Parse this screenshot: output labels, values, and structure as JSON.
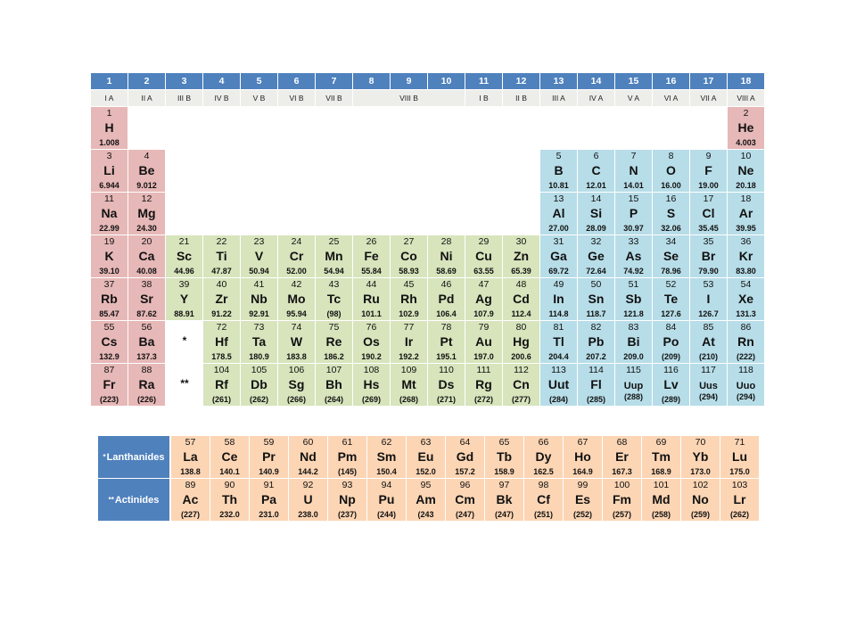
{
  "colors": {
    "header_blue": "#4f81bd",
    "subheader_gray": "#ededea",
    "s_block": "#e6b8b7",
    "d_block": "#d7e4bc",
    "p_block": "#b7dde8",
    "f_block": "#fcd5b4"
  },
  "groups": [
    "1",
    "2",
    "3",
    "4",
    "5",
    "6",
    "7",
    "8",
    "9",
    "10",
    "11",
    "12",
    "13",
    "14",
    "15",
    "16",
    "17",
    "18"
  ],
  "subgroups": [
    {
      "label": "I A",
      "span": 1
    },
    {
      "label": "II A",
      "span": 1
    },
    {
      "label": "III B",
      "span": 1
    },
    {
      "label": "IV B",
      "span": 1
    },
    {
      "label": "V B",
      "span": 1
    },
    {
      "label": "VI B",
      "span": 1
    },
    {
      "label": "VII B",
      "span": 1
    },
    {
      "label": "VIII B",
      "span": 3
    },
    {
      "label": "I B",
      "span": 1
    },
    {
      "label": "II B",
      "span": 1
    },
    {
      "label": "III A",
      "span": 1
    },
    {
      "label": "IV A",
      "span": 1
    },
    {
      "label": "V A",
      "span": 1
    },
    {
      "label": "VI A",
      "span": 1
    },
    {
      "label": "VII A",
      "span": 1
    },
    {
      "label": "VIII A",
      "span": 1
    }
  ],
  "elements": [
    {
      "n": "1",
      "s": "H",
      "m": "1.008",
      "col": 1,
      "row": 1,
      "block": "s"
    },
    {
      "n": "2",
      "s": "He",
      "m": "4.003",
      "col": 18,
      "row": 1,
      "block": "s"
    },
    {
      "n": "3",
      "s": "Li",
      "m": "6.944",
      "col": 1,
      "row": 2,
      "block": "s"
    },
    {
      "n": "4",
      "s": "Be",
      "m": "9.012",
      "col": 2,
      "row": 2,
      "block": "s"
    },
    {
      "n": "5",
      "s": "B",
      "m": "10.81",
      "col": 13,
      "row": 2,
      "block": "p"
    },
    {
      "n": "6",
      "s": "C",
      "m": "12.01",
      "col": 14,
      "row": 2,
      "block": "p"
    },
    {
      "n": "7",
      "s": "N",
      "m": "14.01",
      "col": 15,
      "row": 2,
      "block": "p"
    },
    {
      "n": "8",
      "s": "O",
      "m": "16.00",
      "col": 16,
      "row": 2,
      "block": "p"
    },
    {
      "n": "9",
      "s": "F",
      "m": "19.00",
      "col": 17,
      "row": 2,
      "block": "p"
    },
    {
      "n": "10",
      "s": "Ne",
      "m": "20.18",
      "col": 18,
      "row": 2,
      "block": "p"
    },
    {
      "n": "11",
      "s": "Na",
      "m": "22.99",
      "col": 1,
      "row": 3,
      "block": "s"
    },
    {
      "n": "12",
      "s": "Mg",
      "m": "24.30",
      "col": 2,
      "row": 3,
      "block": "s"
    },
    {
      "n": "13",
      "s": "Al",
      "m": "27.00",
      "col": 13,
      "row": 3,
      "block": "p"
    },
    {
      "n": "14",
      "s": "Si",
      "m": "28.09",
      "col": 14,
      "row": 3,
      "block": "p"
    },
    {
      "n": "15",
      "s": "P",
      "m": "30.97",
      "col": 15,
      "row": 3,
      "block": "p"
    },
    {
      "n": "16",
      "s": "S",
      "m": "32.06",
      "col": 16,
      "row": 3,
      "block": "p"
    },
    {
      "n": "17",
      "s": "Cl",
      "m": "35.45",
      "col": 17,
      "row": 3,
      "block": "p"
    },
    {
      "n": "18",
      "s": "Ar",
      "m": "39.95",
      "col": 18,
      "row": 3,
      "block": "p"
    },
    {
      "n": "19",
      "s": "K",
      "m": "39.10",
      "col": 1,
      "row": 4,
      "block": "s"
    },
    {
      "n": "20",
      "s": "Ca",
      "m": "40.08",
      "col": 2,
      "row": 4,
      "block": "s"
    },
    {
      "n": "21",
      "s": "Sc",
      "m": "44.96",
      "col": 3,
      "row": 4,
      "block": "d"
    },
    {
      "n": "22",
      "s": "Ti",
      "m": "47.87",
      "col": 4,
      "row": 4,
      "block": "d"
    },
    {
      "n": "23",
      "s": "V",
      "m": "50.94",
      "col": 5,
      "row": 4,
      "block": "d"
    },
    {
      "n": "24",
      "s": "Cr",
      "m": "52.00",
      "col": 6,
      "row": 4,
      "block": "d"
    },
    {
      "n": "25",
      "s": "Mn",
      "m": "54.94",
      "col": 7,
      "row": 4,
      "block": "d"
    },
    {
      "n": "26",
      "s": "Fe",
      "m": "55.84",
      "col": 8,
      "row": 4,
      "block": "d"
    },
    {
      "n": "27",
      "s": "Co",
      "m": "58.93",
      "col": 9,
      "row": 4,
      "block": "d"
    },
    {
      "n": "28",
      "s": "Ni",
      "m": "58.69",
      "col": 10,
      "row": 4,
      "block": "d"
    },
    {
      "n": "29",
      "s": "Cu",
      "m": "63.55",
      "col": 11,
      "row": 4,
      "block": "d"
    },
    {
      "n": "30",
      "s": "Zn",
      "m": "65.39",
      "col": 12,
      "row": 4,
      "block": "d"
    },
    {
      "n": "31",
      "s": "Ga",
      "m": "69.72",
      "col": 13,
      "row": 4,
      "block": "p"
    },
    {
      "n": "32",
      "s": "Ge",
      "m": "72.64",
      "col": 14,
      "row": 4,
      "block": "p"
    },
    {
      "n": "33",
      "s": "As",
      "m": "74.92",
      "col": 15,
      "row": 4,
      "block": "p"
    },
    {
      "n": "34",
      "s": "Se",
      "m": "78.96",
      "col": 16,
      "row": 4,
      "block": "p"
    },
    {
      "n": "35",
      "s": "Br",
      "m": "79.90",
      "col": 17,
      "row": 4,
      "block": "p"
    },
    {
      "n": "36",
      "s": "Kr",
      "m": "83.80",
      "col": 18,
      "row": 4,
      "block": "p"
    },
    {
      "n": "37",
      "s": "Rb",
      "m": "85.47",
      "col": 1,
      "row": 5,
      "block": "s"
    },
    {
      "n": "38",
      "s": "Sr",
      "m": "87.62",
      "col": 2,
      "row": 5,
      "block": "s"
    },
    {
      "n": "39",
      "s": "Y",
      "m": "88.91",
      "col": 3,
      "row": 5,
      "block": "d"
    },
    {
      "n": "40",
      "s": "Zr",
      "m": "91.22",
      "col": 4,
      "row": 5,
      "block": "d"
    },
    {
      "n": "41",
      "s": "Nb",
      "m": "92.91",
      "col": 5,
      "row": 5,
      "block": "d"
    },
    {
      "n": "42",
      "s": "Mo",
      "m": "95.94",
      "col": 6,
      "row": 5,
      "block": "d"
    },
    {
      "n": "43",
      "s": "Tc",
      "m": "(98)",
      "col": 7,
      "row": 5,
      "block": "d"
    },
    {
      "n": "44",
      "s": "Ru",
      "m": "101.1",
      "col": 8,
      "row": 5,
      "block": "d"
    },
    {
      "n": "45",
      "s": "Rh",
      "m": "102.9",
      "col": 9,
      "row": 5,
      "block": "d"
    },
    {
      "n": "46",
      "s": "Pd",
      "m": "106.4",
      "col": 10,
      "row": 5,
      "block": "d"
    },
    {
      "n": "47",
      "s": "Ag",
      "m": "107.9",
      "col": 11,
      "row": 5,
      "block": "d"
    },
    {
      "n": "48",
      "s": "Cd",
      "m": "112.4",
      "col": 12,
      "row": 5,
      "block": "d"
    },
    {
      "n": "49",
      "s": "In",
      "m": "114.8",
      "col": 13,
      "row": 5,
      "block": "p"
    },
    {
      "n": "50",
      "s": "Sn",
      "m": "118.7",
      "col": 14,
      "row": 5,
      "block": "p"
    },
    {
      "n": "51",
      "s": "Sb",
      "m": "121.8",
      "col": 15,
      "row": 5,
      "block": "p"
    },
    {
      "n": "52",
      "s": "Te",
      "m": "127.6",
      "col": 16,
      "row": 5,
      "block": "p"
    },
    {
      "n": "53",
      "s": "I",
      "m": "126.7",
      "col": 17,
      "row": 5,
      "block": "p"
    },
    {
      "n": "54",
      "s": "Xe",
      "m": "131.3",
      "col": 18,
      "row": 5,
      "block": "p"
    },
    {
      "n": "55",
      "s": "Cs",
      "m": "132.9",
      "col": 1,
      "row": 6,
      "block": "s"
    },
    {
      "n": "56",
      "s": "Ba",
      "m": "137.3",
      "col": 2,
      "row": 6,
      "block": "s"
    },
    {
      "n": "72",
      "s": "Hf",
      "m": "178.5",
      "col": 4,
      "row": 6,
      "block": "d"
    },
    {
      "n": "73",
      "s": "Ta",
      "m": "180.9",
      "col": 5,
      "row": 6,
      "block": "d"
    },
    {
      "n": "74",
      "s": "W",
      "m": "183.8",
      "col": 6,
      "row": 6,
      "block": "d"
    },
    {
      "n": "75",
      "s": "Re",
      "m": "186.2",
      "col": 7,
      "row": 6,
      "block": "d"
    },
    {
      "n": "76",
      "s": "Os",
      "m": "190.2",
      "col": 8,
      "row": 6,
      "block": "d"
    },
    {
      "n": "77",
      "s": "Ir",
      "m": "192.2",
      "col": 9,
      "row": 6,
      "block": "d"
    },
    {
      "n": "78",
      "s": "Pt",
      "m": "195.1",
      "col": 10,
      "row": 6,
      "block": "d"
    },
    {
      "n": "79",
      "s": "Au",
      "m": "197.0",
      "col": 11,
      "row": 6,
      "block": "d"
    },
    {
      "n": "80",
      "s": "Hg",
      "m": "200.6",
      "col": 12,
      "row": 6,
      "block": "d"
    },
    {
      "n": "81",
      "s": "Tl",
      "m": "204.4",
      "col": 13,
      "row": 6,
      "block": "p"
    },
    {
      "n": "82",
      "s": "Pb",
      "m": "207.2",
      "col": 14,
      "row": 6,
      "block": "p"
    },
    {
      "n": "83",
      "s": "Bi",
      "m": "209.0",
      "col": 15,
      "row": 6,
      "block": "p"
    },
    {
      "n": "84",
      "s": "Po",
      "m": "(209)",
      "col": 16,
      "row": 6,
      "block": "p"
    },
    {
      "n": "85",
      "s": "At",
      "m": "(210)",
      "col": 17,
      "row": 6,
      "block": "p"
    },
    {
      "n": "86",
      "s": "Rn",
      "m": "(222)",
      "col": 18,
      "row": 6,
      "block": "p"
    },
    {
      "n": "87",
      "s": "Fr",
      "m": "(223)",
      "col": 1,
      "row": 7,
      "block": "s"
    },
    {
      "n": "88",
      "s": "Ra",
      "m": "(226)",
      "col": 2,
      "row": 7,
      "block": "s"
    },
    {
      "n": "104",
      "s": "Rf",
      "m": "(261)",
      "col": 4,
      "row": 7,
      "block": "d"
    },
    {
      "n": "105",
      "s": "Db",
      "m": "(262)",
      "col": 5,
      "row": 7,
      "block": "d"
    },
    {
      "n": "106",
      "s": "Sg",
      "m": "(266)",
      "col": 6,
      "row": 7,
      "block": "d"
    },
    {
      "n": "107",
      "s": "Bh",
      "m": "(264)",
      "col": 7,
      "row": 7,
      "block": "d"
    },
    {
      "n": "108",
      "s": "Hs",
      "m": "(269)",
      "col": 8,
      "row": 7,
      "block": "d"
    },
    {
      "n": "109",
      "s": "Mt",
      "m": "(268)",
      "col": 9,
      "row": 7,
      "block": "d"
    },
    {
      "n": "110",
      "s": "Ds",
      "m": "(271)",
      "col": 10,
      "row": 7,
      "block": "d"
    },
    {
      "n": "111",
      "s": "Rg",
      "m": "(272)",
      "col": 11,
      "row": 7,
      "block": "d"
    },
    {
      "n": "112",
      "s": "Cn",
      "m": "(277)",
      "col": 12,
      "row": 7,
      "block": "d"
    },
    {
      "n": "113",
      "s": "Uut",
      "m": "(284)",
      "col": 13,
      "row": 7,
      "block": "p"
    },
    {
      "n": "114",
      "s": "Fl",
      "m": "(285)",
      "col": 14,
      "row": 7,
      "block": "p"
    },
    {
      "n": "115",
      "s": "Uup",
      "m": "(288)",
      "col": 15,
      "row": 7,
      "block": "p",
      "small": true
    },
    {
      "n": "116",
      "s": "Lv",
      "m": "(289)",
      "col": 16,
      "row": 7,
      "block": "p"
    },
    {
      "n": "117",
      "s": "Uus",
      "m": "(294)",
      "col": 17,
      "row": 7,
      "block": "p",
      "small": true
    },
    {
      "n": "118",
      "s": "Uuo",
      "m": "(294)",
      "col": 18,
      "row": 7,
      "block": "p",
      "small": true
    }
  ],
  "placeholders": [
    {
      "text": "*",
      "col": 3,
      "row": 6
    },
    {
      "text": "**",
      "col": 3,
      "row": 7
    }
  ],
  "fblock": {
    "lanthanides": {
      "marker": "*",
      "label": "Lanthanides",
      "elements": [
        {
          "n": "57",
          "s": "La",
          "m": "138.8"
        },
        {
          "n": "58",
          "s": "Ce",
          "m": "140.1"
        },
        {
          "n": "59",
          "s": "Pr",
          "m": "140.9"
        },
        {
          "n": "60",
          "s": "Nd",
          "m": "144.2"
        },
        {
          "n": "61",
          "s": "Pm",
          "m": "(145)"
        },
        {
          "n": "62",
          "s": "Sm",
          "m": "150.4"
        },
        {
          "n": "63",
          "s": "Eu",
          "m": "152.0"
        },
        {
          "n": "64",
          "s": "Gd",
          "m": "157.2"
        },
        {
          "n": "65",
          "s": "Tb",
          "m": "158.9"
        },
        {
          "n": "66",
          "s": "Dy",
          "m": "162.5"
        },
        {
          "n": "67",
          "s": "Ho",
          "m": "164.9"
        },
        {
          "n": "68",
          "s": "Er",
          "m": "167.3"
        },
        {
          "n": "69",
          "s": "Tm",
          "m": "168.9"
        },
        {
          "n": "70",
          "s": "Yb",
          "m": "173.0"
        },
        {
          "n": "71",
          "s": "Lu",
          "m": "175.0"
        }
      ]
    },
    "actinides": {
      "marker": "**",
      "label": "Actinides",
      "elements": [
        {
          "n": "89",
          "s": "Ac",
          "m": "(227)"
        },
        {
          "n": "90",
          "s": "Th",
          "m": "232.0"
        },
        {
          "n": "91",
          "s": "Pa",
          "m": "231.0"
        },
        {
          "n": "92",
          "s": "U",
          "m": "238.0"
        },
        {
          "n": "93",
          "s": "Np",
          "m": "(237)"
        },
        {
          "n": "94",
          "s": "Pu",
          "m": "(244)"
        },
        {
          "n": "95",
          "s": "Am",
          "m": "(243"
        },
        {
          "n": "96",
          "s": "Cm",
          "m": "(247)"
        },
        {
          "n": "97",
          "s": "Bk",
          "m": "(247)"
        },
        {
          "n": "98",
          "s": "Cf",
          "m": "(251)"
        },
        {
          "n": "99",
          "s": "Es",
          "m": "(252)"
        },
        {
          "n": "100",
          "s": "Fm",
          "m": "(257)"
        },
        {
          "n": "101",
          "s": "Md",
          "m": "(258)"
        },
        {
          "n": "102",
          "s": "No",
          "m": "(259)"
        },
        {
          "n": "103",
          "s": "Lr",
          "m": "(262)"
        }
      ]
    }
  }
}
